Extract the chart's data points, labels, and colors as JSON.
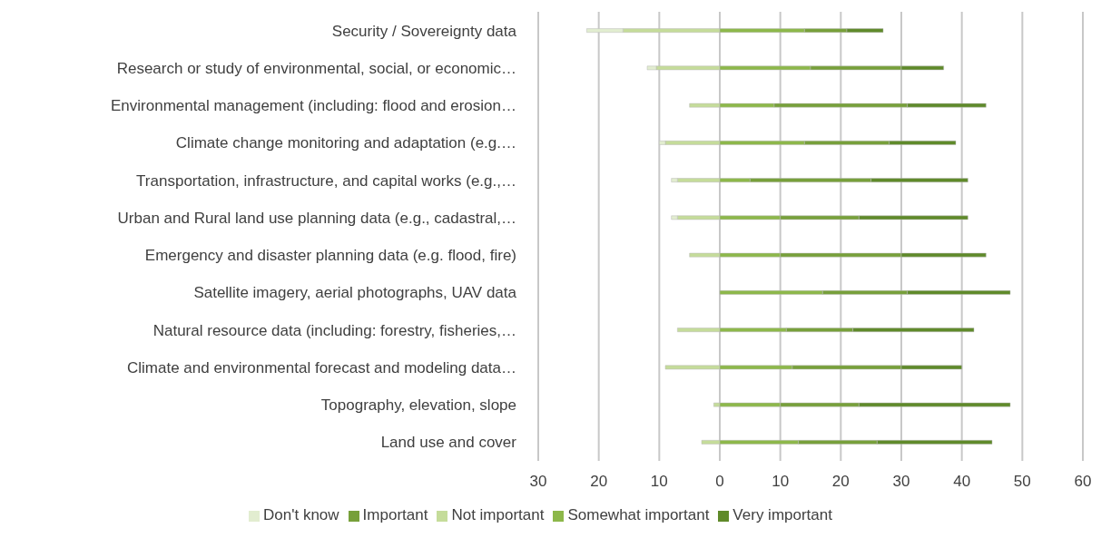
{
  "chart_data": {
    "type": "bar",
    "orientation": "horizontal",
    "stacked": true,
    "categories": [
      "Security / Sovereignty data",
      "Research or study of environmental, social, or economic…",
      "Environmental management (including: flood and erosion…",
      "Climate change monitoring and adaptation (e.g.…",
      "Transportation, infrastructure, and capital works (e.g.,…",
      "Urban and Rural land use planning data (e.g., cadastral,…",
      "Emergency and disaster planning data (e.g. flood, fire)",
      "Satellite imagery, aerial photographs, UAV data",
      "Natural resource data (including: forestry, fisheries,…",
      "Climate and environmental forecast and modeling data…",
      "Topography, elevation, slope",
      "Land use and cover"
    ],
    "series": [
      {
        "name": "Not important",
        "color": "#c5dc9a",
        "values": [
          -16,
          -10.5,
          -5,
          -9,
          -7,
          -7,
          -5,
          0,
          -7,
          -9,
          -1,
          -3
        ]
      },
      {
        "name": "Don't know",
        "color": "#e2edd0",
        "values": [
          -6,
          -1.5,
          0,
          -1,
          -1,
          -1,
          0,
          0,
          0,
          0,
          0,
          0
        ]
      },
      {
        "name": "Somewhat important",
        "color": "#8db84a",
        "values": [
          14,
          15,
          9,
          14,
          5,
          10,
          10,
          17,
          11,
          12,
          10,
          13
        ]
      },
      {
        "name": "Important",
        "color": "#77a03a",
        "values": [
          7,
          15,
          22,
          14,
          20,
          13,
          20,
          14,
          11,
          18,
          13,
          13
        ]
      },
      {
        "name": "Very important",
        "color": "#5f8a2a",
        "values": [
          6,
          7,
          13,
          11,
          16,
          18,
          14,
          17,
          20,
          10,
          25,
          19
        ]
      }
    ],
    "xlim": [
      -30,
      60
    ],
    "xticks": [
      {
        "value": -30,
        "label": "30"
      },
      {
        "value": -20,
        "label": "20"
      },
      {
        "value": -10,
        "label": "10"
      },
      0,
      10,
      20,
      30,
      40,
      50,
      60
    ],
    "grid": "x",
    "legend": "bottom"
  }
}
